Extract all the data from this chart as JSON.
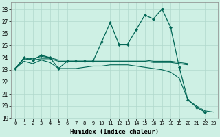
{
  "xlabel": "Humidex (Indice chaleur)",
  "ylabel": "",
  "bg_color": "#cef0e4",
  "grid_color": "#b0d8cc",
  "line_color": "#006655",
  "xlim": [
    -0.5,
    23.5
  ],
  "ylim": [
    19,
    28.6
  ],
  "yticks": [
    19,
    20,
    21,
    22,
    23,
    24,
    25,
    26,
    27,
    28
  ],
  "xticks": [
    0,
    1,
    2,
    3,
    4,
    5,
    6,
    7,
    8,
    9,
    10,
    11,
    12,
    13,
    14,
    15,
    16,
    17,
    18,
    19,
    20,
    21,
    22,
    23
  ],
  "series1_x": [
    0,
    1,
    2,
    3,
    4,
    5,
    6,
    7,
    8,
    9,
    10,
    11,
    12,
    13,
    14,
    15,
    16,
    17,
    18,
    19,
    20,
    21,
    22
  ],
  "series1_y": [
    23.1,
    24.0,
    23.8,
    24.2,
    24.0,
    23.1,
    23.7,
    23.7,
    23.7,
    23.7,
    25.3,
    26.9,
    25.1,
    25.1,
    26.3,
    27.5,
    27.2,
    28.0,
    26.5,
    23.2,
    20.5,
    19.9,
    19.5
  ],
  "series2_x": [
    0,
    1,
    2,
    3,
    4,
    5,
    6,
    7,
    8,
    9,
    10,
    11,
    12,
    13,
    14,
    15,
    16,
    17,
    18,
    19,
    20
  ],
  "series2_y": [
    23.1,
    24.0,
    23.9,
    24.1,
    24.0,
    23.8,
    23.8,
    23.8,
    23.8,
    23.8,
    23.8,
    23.8,
    23.8,
    23.8,
    23.8,
    23.8,
    23.7,
    23.7,
    23.7,
    23.6,
    23.5
  ],
  "series3_x": [
    0,
    1,
    2,
    3,
    4,
    5,
    6,
    7,
    8,
    9,
    10,
    11,
    12,
    13,
    14,
    15,
    16,
    17,
    18,
    19,
    20
  ],
  "series3_y": [
    23.1,
    23.9,
    23.8,
    23.9,
    23.9,
    23.7,
    23.7,
    23.7,
    23.7,
    23.7,
    23.7,
    23.7,
    23.7,
    23.7,
    23.7,
    23.7,
    23.6,
    23.6,
    23.6,
    23.5,
    23.4
  ],
  "series4_x": [
    0,
    1,
    2,
    3,
    4,
    5,
    6,
    7,
    8,
    9,
    10,
    11,
    12,
    13,
    14,
    15,
    16,
    17,
    18,
    19,
    20,
    21,
    22,
    23
  ],
  "series4_y": [
    23.1,
    23.7,
    23.5,
    23.8,
    23.6,
    23.1,
    23.1,
    23.1,
    23.2,
    23.3,
    23.3,
    23.4,
    23.4,
    23.4,
    23.3,
    23.2,
    23.1,
    23.0,
    22.8,
    22.3,
    20.5,
    20.0,
    19.6,
    19.5
  ]
}
